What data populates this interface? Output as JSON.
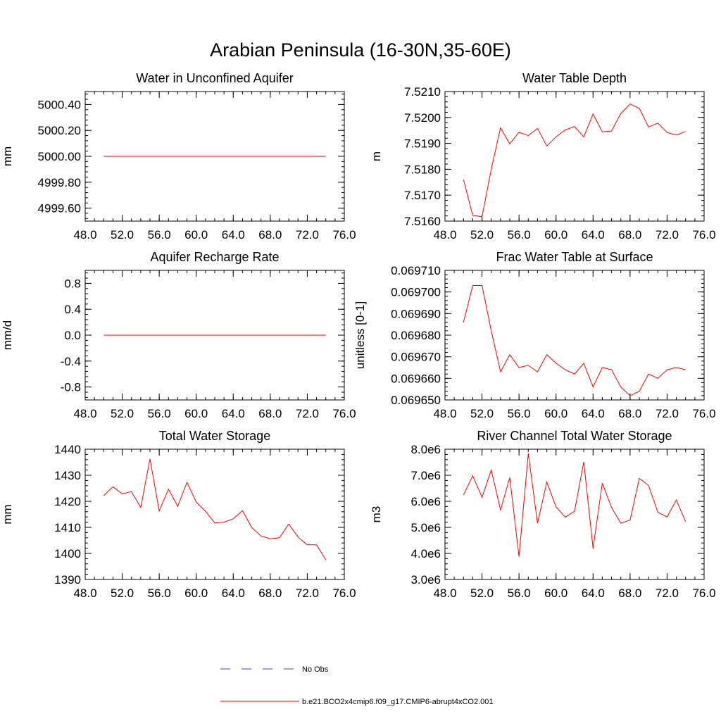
{
  "figure": {
    "title": "Arabian Peninsula (16-30N,35-60E)"
  },
  "legend": {
    "entries": [
      {
        "label": "No Obs",
        "color": "#3b3bff",
        "dashed": true
      },
      {
        "label": "b.e21.BCO2x4cmip6.f09_g17.CMIP6-abrupt4xCO2.001",
        "color": "#ff0000",
        "dashed": false
      }
    ]
  },
  "chart_data": [
    {
      "type": "line",
      "title": "Water in Unconfined Aquifer",
      "ylabel": "mm",
      "xlim": [
        48,
        76
      ],
      "xticks": [
        "48.0",
        "52.0",
        "56.0",
        "60.0",
        "64.0",
        "68.0",
        "72.0",
        "76.0"
      ],
      "ylim": [
        4999.5,
        5000.5
      ],
      "yticks": [
        4999.6,
        4999.8,
        5000.0,
        5000.2,
        5000.4
      ],
      "ytick_labels": [
        "4999.60",
        "4999.80",
        "5000.00",
        "5000.20",
        "5000.40"
      ],
      "series": [
        {
          "color": "#ff0000",
          "x": [
            50,
            51,
            52,
            53,
            54,
            55,
            56,
            57,
            58,
            59,
            60,
            61,
            62,
            63,
            64,
            65,
            66,
            67,
            68,
            69,
            70,
            71,
            72,
            73,
            74
          ],
          "y": [
            5000,
            5000,
            5000,
            5000,
            5000,
            5000,
            5000,
            5000,
            5000,
            5000,
            5000,
            5000,
            5000,
            5000,
            5000,
            5000,
            5000,
            5000,
            5000,
            5000,
            5000,
            5000,
            5000,
            5000,
            5000
          ]
        }
      ]
    },
    {
      "type": "line",
      "title": "Water Table Depth",
      "ylabel": "m",
      "xlim": [
        48,
        76
      ],
      "xticks": [
        "48.0",
        "52.0",
        "56.0",
        "60.0",
        "64.0",
        "68.0",
        "72.0",
        "76.0"
      ],
      "ylim": [
        7.516,
        7.521
      ],
      "yticks": [
        7.516,
        7.517,
        7.518,
        7.519,
        7.52,
        7.521
      ],
      "ytick_labels": [
        "7.5160",
        "7.5170",
        "7.5180",
        "7.5190",
        "7.5200",
        "7.5210"
      ],
      "series": [
        {
          "color": "#ff0000",
          "x": [
            50,
            51,
            52,
            53,
            54,
            55,
            56,
            57,
            58,
            59,
            60,
            61,
            62,
            63,
            64,
            65,
            66,
            67,
            68,
            69,
            70,
            71,
            72,
            73,
            74
          ],
          "y": [
            7.5176,
            7.51622,
            7.51617,
            7.518,
            7.5196,
            7.51898,
            7.51943,
            7.5193,
            7.51958,
            7.5189,
            7.51925,
            7.51952,
            7.51965,
            7.51925,
            7.52013,
            7.51944,
            7.51948,
            7.52015,
            7.52052,
            7.52035,
            7.51963,
            7.51978,
            7.51942,
            7.51932,
            7.51946
          ]
        }
      ]
    },
    {
      "type": "line",
      "title": "Aquifer Recharge Rate",
      "ylabel": "mm/d",
      "xlim": [
        48,
        76
      ],
      "xticks": [
        "48.0",
        "52.0",
        "56.0",
        "60.0",
        "64.0",
        "68.0",
        "72.0",
        "76.0"
      ],
      "ylim": [
        -1.0,
        1.0
      ],
      "yticks": [
        -0.8,
        -0.4,
        0.0,
        0.4,
        0.8
      ],
      "ytick_labels": [
        "-0.8",
        "-0.4",
        "0.0",
        "0.4",
        "0.8"
      ],
      "series": [
        {
          "color": "#ff0000",
          "x": [
            50,
            51,
            52,
            53,
            54,
            55,
            56,
            57,
            58,
            59,
            60,
            61,
            62,
            63,
            64,
            65,
            66,
            67,
            68,
            69,
            70,
            71,
            72,
            73,
            74
          ],
          "y": [
            0,
            0,
            0,
            0,
            0,
            0,
            0,
            0,
            0,
            0,
            0,
            0,
            0,
            0,
            0,
            0,
            0,
            0,
            0,
            0,
            0,
            0,
            0,
            0,
            0
          ]
        }
      ]
    },
    {
      "type": "line",
      "title": "Frac Water Table at Surface",
      "ylabel": "unitless [0-1]",
      "xlim": [
        48,
        76
      ],
      "xticks": [
        "48.0",
        "52.0",
        "56.0",
        "60.0",
        "64.0",
        "68.0",
        "72.0",
        "76.0"
      ],
      "ylim": [
        0.06965,
        0.06971
      ],
      "yticks": [
        0.06965,
        0.06966,
        0.06967,
        0.06968,
        0.06969,
        0.0697,
        0.06971
      ],
      "ytick_labels": [
        "0.069650",
        "0.069660",
        "0.069670",
        "0.069680",
        "0.069690",
        "0.069700",
        "0.069710"
      ],
      "series": [
        {
          "color": "#ff0000",
          "x": [
            50,
            51,
            52,
            53,
            54,
            55,
            56,
            57,
            58,
            59,
            60,
            61,
            62,
            63,
            64,
            65,
            66,
            67,
            68,
            69,
            70,
            71,
            72,
            73,
            74
          ],
          "y": [
            0.069686,
            0.069703,
            0.069703,
            0.069682,
            0.069663,
            0.069671,
            0.069665,
            0.069666,
            0.069663,
            0.069671,
            0.069667,
            0.069664,
            0.069662,
            0.069667,
            0.069656,
            0.069665,
            0.069664,
            0.069656,
            0.069652,
            0.069654,
            0.069662,
            0.06966,
            0.069664,
            0.069665,
            0.069664
          ]
        }
      ]
    },
    {
      "type": "line",
      "title": "Total Water Storage",
      "ylabel": "mm",
      "xlim": [
        48,
        76
      ],
      "xticks": [
        "48.0",
        "52.0",
        "56.0",
        "60.0",
        "64.0",
        "68.0",
        "72.0",
        "76.0"
      ],
      "ylim": [
        1390,
        1440
      ],
      "yticks": [
        1390,
        1400,
        1410,
        1420,
        1430,
        1440
      ],
      "ytick_labels": [
        "1390",
        "1400",
        "1410",
        "1420",
        "1430",
        "1440"
      ],
      "series": [
        {
          "color": "#ff0000",
          "x": [
            50,
            51,
            52,
            53,
            54,
            55,
            56,
            57,
            58,
            59,
            60,
            61,
            62,
            63,
            64,
            65,
            66,
            67,
            68,
            69,
            70,
            71,
            72,
            73,
            74
          ],
          "y": [
            1422.2,
            1425.6,
            1422.9,
            1423.7,
            1417.6,
            1436.3,
            1416.3,
            1424.7,
            1418.1,
            1427.3,
            1419.7,
            1416.2,
            1411.7,
            1412.0,
            1413.3,
            1416.4,
            1409.9,
            1406.7,
            1405.6,
            1406.0,
            1411.3,
            1406.3,
            1403.3,
            1403.3,
            1397.6
          ]
        }
      ]
    },
    {
      "type": "line",
      "title": "River Channel Total Water Storage",
      "ylabel": "m3",
      "xlim": [
        48,
        76
      ],
      "xticks": [
        "48.0",
        "52.0",
        "56.0",
        "60.0",
        "64.0",
        "68.0",
        "72.0",
        "76.0"
      ],
      "ylim": [
        3000000,
        8000000
      ],
      "yticks": [
        3000000,
        4000000,
        5000000,
        6000000,
        7000000,
        8000000
      ],
      "ytick_labels": [
        "3.0e6",
        "4.0e6",
        "5.0e6",
        "6.0e6",
        "7.0e6",
        "8.0e6"
      ],
      "series": [
        {
          "color": "#ff0000",
          "x": [
            50,
            51,
            52,
            53,
            54,
            55,
            56,
            57,
            58,
            59,
            60,
            61,
            62,
            63,
            64,
            65,
            66,
            67,
            68,
            69,
            70,
            71,
            72,
            73,
            74
          ],
          "y": [
            6250000,
            6980000,
            6160000,
            7200000,
            5670000,
            6910000,
            3880000,
            7840000,
            5160000,
            6740000,
            5790000,
            5390000,
            5620000,
            7520000,
            4190000,
            6700000,
            5760000,
            5160000,
            5280000,
            6880000,
            6610000,
            5580000,
            5400000,
            6050000,
            5220000
          ]
        }
      ]
    }
  ]
}
